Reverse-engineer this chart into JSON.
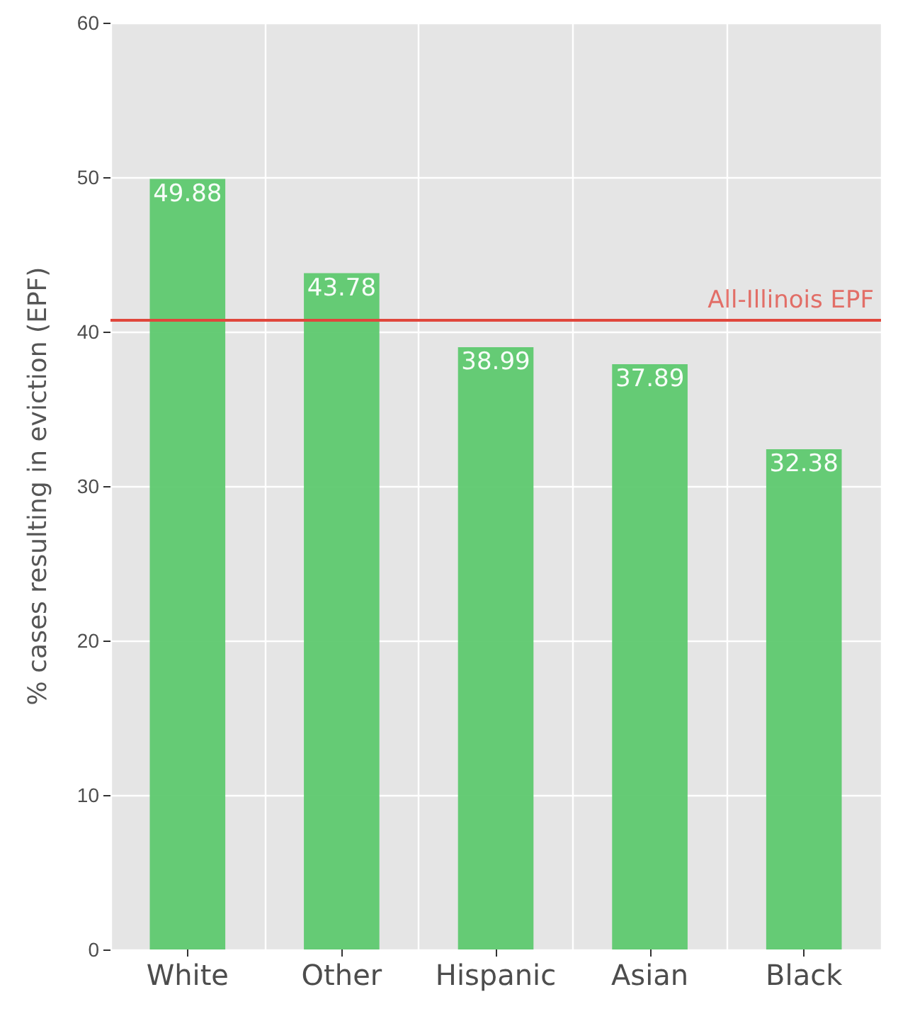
{
  "chart_data": {
    "type": "bar",
    "ylabel": "% cases resulting in eviction (EPF)",
    "categories": [
      "White",
      "Other",
      "Hispanic",
      "Asian",
      "Black"
    ],
    "values": [
      49.88,
      43.78,
      38.99,
      37.89,
      32.38
    ],
    "color": "#5ec96f",
    "data_labels": true,
    "ylim": [
      0,
      60
    ],
    "yticks": [
      0,
      10,
      20,
      30,
      40,
      50,
      60
    ],
    "grid": true,
    "ref_lines": [
      {
        "axis": "y",
        "value": 40.8,
        "label": "All-Illinois EPF",
        "color": "#e0463c"
      }
    ]
  }
}
